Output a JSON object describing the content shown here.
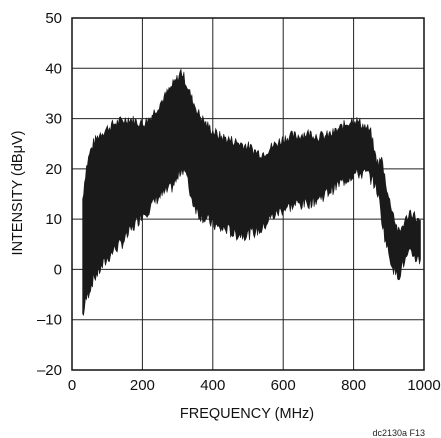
{
  "chart_data": {
    "type": "area",
    "xlabel": "FREQUENCY (MHz)",
    "ylabel": "INTENSITY (dBμV)",
    "figure_id": "dc2130a F13",
    "xlim": [
      0,
      1000
    ],
    "ylim": [
      -20,
      50
    ],
    "x_ticks": [
      0,
      200,
      400,
      600,
      800,
      1000
    ],
    "y_ticks": [
      -20,
      -10,
      0,
      10,
      20,
      30,
      40,
      50
    ],
    "x_tick_labels": [
      "0",
      "200",
      "400",
      "600",
      "800",
      "1000"
    ],
    "y_tick_labels": [
      "–20",
      "–10",
      "0",
      "10",
      "20",
      "30",
      "40",
      "50"
    ],
    "grid": true,
    "fill_color": "#1a1a1a",
    "series": [
      {
        "x": [
          30,
          35,
          40,
          50,
          60,
          80,
          100,
          120,
          140,
          160,
          180,
          200,
          220,
          240,
          260,
          280,
          300,
          310,
          320,
          330,
          340,
          360,
          380,
          400,
          420,
          440,
          460,
          480,
          500,
          520,
          540,
          560,
          580,
          600,
          620,
          640,
          660,
          680,
          700,
          720,
          740,
          760,
          780,
          800,
          820,
          840,
          850,
          860,
          870,
          880,
          890,
          900,
          910,
          920,
          930,
          940,
          950,
          960,
          970,
          980,
          990
        ],
        "upper": [
          14,
          17,
          20,
          23,
          25,
          27,
          28,
          29,
          29.5,
          30,
          29.5,
          29,
          30,
          32,
          34,
          36,
          38,
          39.5,
          38,
          36,
          34,
          31,
          29,
          27.5,
          26.5,
          26,
          25.5,
          25,
          24.5,
          23.5,
          23,
          24,
          25,
          26,
          26.5,
          26.5,
          27,
          27,
          26.5,
          26.5,
          27,
          28,
          29,
          30,
          29,
          28,
          27,
          23,
          21,
          22,
          18,
          14,
          12,
          9,
          7,
          9,
          10,
          11.5,
          11,
          10,
          9
        ],
        "lower": [
          -9,
          -8,
          -6,
          -4,
          -2,
          0,
          2,
          4,
          5,
          7,
          9,
          11,
          12,
          14,
          15,
          16,
          18,
          20,
          20,
          17,
          14,
          11,
          10,
          9,
          8,
          8,
          7,
          7,
          7,
          7.5,
          8,
          10,
          11,
          12,
          12.5,
          13,
          13,
          13.5,
          14,
          15,
          16,
          17,
          18,
          19,
          19,
          19,
          18,
          17,
          15,
          10,
          6,
          3,
          1,
          -1,
          -1,
          1,
          2,
          3,
          3,
          2,
          2
        ]
      }
    ]
  }
}
